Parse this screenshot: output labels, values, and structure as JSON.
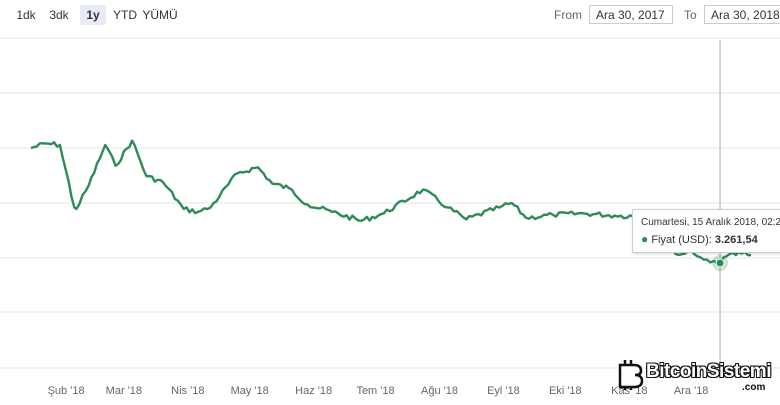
{
  "toolbar": {
    "zoom_buttons": [
      {
        "label": "1dk",
        "selected": false
      },
      {
        "label": "3dk",
        "selected": false
      },
      {
        "label": "1y",
        "selected": true
      },
      {
        "label": "YTD",
        "selected": false
      },
      {
        "label": "YÜMÜ",
        "selected": false
      }
    ],
    "from_label": "From",
    "from_value": "Ara 30, 2017",
    "to_label": "To",
    "to_value": "Ara 30, 2018"
  },
  "tooltip": {
    "date": "Cumartesi, 15 Aralık 2018, 02:2",
    "series_label": "Fiyat (USD):",
    "value": "3.261,54"
  },
  "watermark": {
    "brand": "BitcoinSistemi",
    "suffix": ".com"
  },
  "colors": {
    "line": "#2e8b57",
    "grid": "#e6e6e6",
    "crosshair": "#aaaaaa"
  },
  "chart_data": {
    "type": "line",
    "title": "",
    "xlabel": "",
    "ylabel": "",
    "x_tick_labels": [
      "Şub '18",
      "Mar '18",
      "Nis '18",
      "May '18",
      "Haz '18",
      "Tem '18",
      "Ağu '18",
      "Eyl '18",
      "Eki '18",
      "Kas '18",
      "Ara '18"
    ],
    "x_range": [
      "2017-12-30",
      "2018-12-30"
    ],
    "grid": true,
    "series": [
      {
        "name": "Fiyat (USD)",
        "points": [
          [
            "2018-01-15",
            11000
          ],
          [
            "2018-01-22",
            11300
          ],
          [
            "2018-01-29",
            11200
          ],
          [
            "2018-02-05",
            7000
          ],
          [
            "2018-02-06",
            6900
          ],
          [
            "2018-02-12",
            8500
          ],
          [
            "2018-02-20",
            11200
          ],
          [
            "2018-02-25",
            9800
          ],
          [
            "2018-03-05",
            11500
          ],
          [
            "2018-03-12",
            9100
          ],
          [
            "2018-03-20",
            8700
          ],
          [
            "2018-03-30",
            6900
          ],
          [
            "2018-04-06",
            6700
          ],
          [
            "2018-04-12",
            7000
          ],
          [
            "2018-04-25",
            9300
          ],
          [
            "2018-05-05",
            9700
          ],
          [
            "2018-05-12",
            8600
          ],
          [
            "2018-05-20",
            8300
          ],
          [
            "2018-05-29",
            7200
          ],
          [
            "2018-06-10",
            6700
          ],
          [
            "2018-06-24",
            6100
          ],
          [
            "2018-07-05",
            6600
          ],
          [
            "2018-07-24",
            8200
          ],
          [
            "2018-08-05",
            7000
          ],
          [
            "2018-08-14",
            6200
          ],
          [
            "2018-08-30",
            7000
          ],
          [
            "2018-09-05",
            7300
          ],
          [
            "2018-09-12",
            6300
          ],
          [
            "2018-09-25",
            6500
          ],
          [
            "2018-10-10",
            6600
          ],
          [
            "2018-10-25",
            6450
          ],
          [
            "2018-11-10",
            6400
          ],
          [
            "2018-11-15",
            5600
          ],
          [
            "2018-11-20",
            4500
          ],
          [
            "2018-11-25",
            3800
          ],
          [
            "2018-12-01",
            4100
          ],
          [
            "2018-12-07",
            3500
          ],
          [
            "2018-12-12",
            3400
          ],
          [
            "2018-12-15",
            3261.54
          ],
          [
            "2018-12-20",
            3900
          ],
          [
            "2018-12-24",
            4000
          ],
          [
            "2018-12-30",
            3800
          ]
        ]
      }
    ],
    "highlighted_point": [
      "2018-12-15",
      3261.54
    ]
  }
}
